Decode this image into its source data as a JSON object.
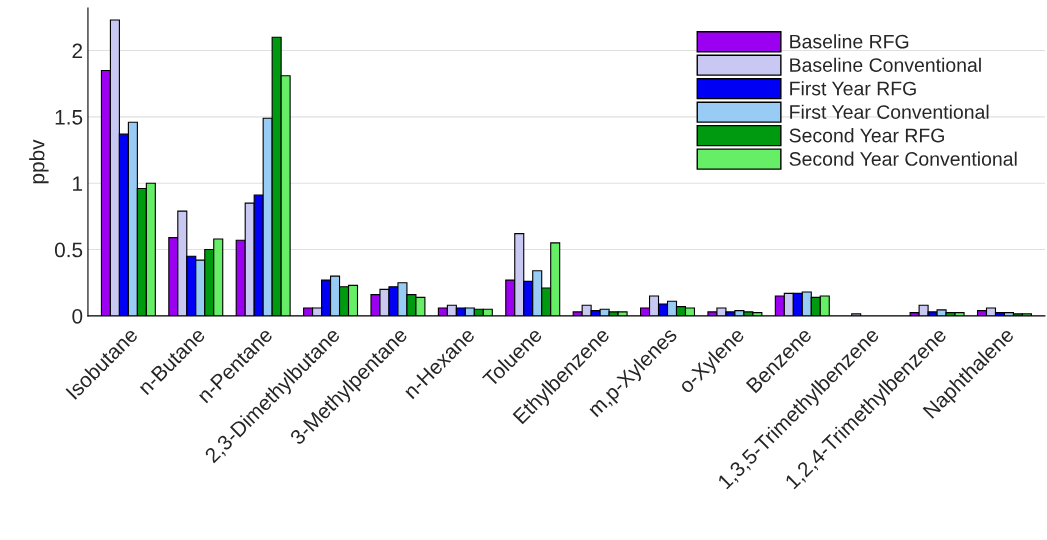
{
  "chart_data": {
    "type": "bar",
    "ylabel": "ppbv",
    "categories": [
      "Isobutane",
      "n-Butane",
      "n-Pentane",
      "2,3-Dimethylbutane",
      "3-Methylpentane",
      "n-Hexane",
      "Toluene",
      "Ethylbenzene",
      "m,p-Xylenes",
      "o-Xylene",
      "Benzene",
      "1,3,5-Trimethylbenzene",
      "1,2,4-Trimethylbenzene",
      "Naphthalene"
    ],
    "series": [
      {
        "name": "Baseline RFG",
        "color": "#9b00f0",
        "values": [
          1.85,
          0.59,
          0.57,
          0.06,
          0.16,
          0.06,
          0.27,
          0.03,
          0.06,
          0.03,
          0.15,
          null,
          0.025,
          0.04
        ]
      },
      {
        "name": "Baseline Conventional",
        "color": "#c8c8f2",
        "values": [
          2.23,
          0.79,
          0.85,
          0.06,
          0.2,
          0.08,
          0.62,
          0.08,
          0.15,
          0.06,
          0.17,
          0.015,
          0.08,
          0.06
        ]
      },
      {
        "name": "First Year RFG",
        "color": "#0000f5",
        "values": [
          1.37,
          0.45,
          0.91,
          0.27,
          0.22,
          0.06,
          0.26,
          0.04,
          0.09,
          0.03,
          0.17,
          null,
          0.03,
          0.025
        ]
      },
      {
        "name": "First Year Conventional",
        "color": "#99ccf5",
        "values": [
          1.46,
          0.42,
          1.49,
          0.3,
          0.25,
          0.06,
          0.34,
          0.05,
          0.11,
          0.04,
          0.18,
          null,
          0.045,
          0.025
        ]
      },
      {
        "name": "Second Year RFG",
        "color": "#009a10",
        "values": [
          0.96,
          0.5,
          2.1,
          0.22,
          0.16,
          0.05,
          0.21,
          0.03,
          0.07,
          0.03,
          0.14,
          null,
          0.025,
          0.015
        ]
      },
      {
        "name": "Second Year Conventional",
        "color": "#66ee66",
        "values": [
          1.0,
          0.58,
          1.81,
          0.23,
          0.14,
          0.05,
          0.55,
          0.03,
          0.06,
          0.025,
          0.15,
          null,
          0.025,
          0.015
        ]
      }
    ],
    "ylim": [
      0,
      2.32
    ],
    "yticks": [
      0,
      0.5,
      1,
      1.5,
      2
    ],
    "grid": "y",
    "legend": "top right"
  }
}
